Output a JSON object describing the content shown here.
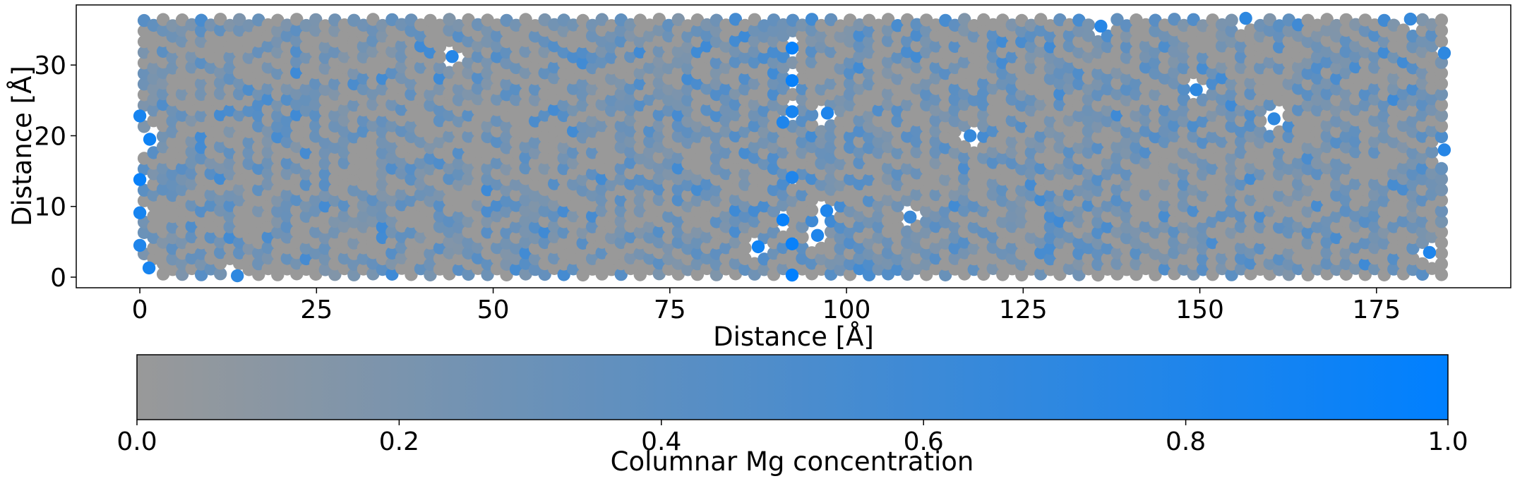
{
  "chart_data": {
    "type": "scatter",
    "title": "",
    "xlabel": "Distance [Å]",
    "ylabel": "Distance [Å]",
    "xlim": [
      -9,
      194
    ],
    "ylim": [
      -1.5,
      38.5
    ],
    "xticks": [
      0,
      25,
      50,
      75,
      100,
      125,
      150,
      175
    ],
    "yticks": [
      0,
      10,
      20,
      30
    ],
    "x_tick_labels": [
      "0",
      "25",
      "50",
      "75",
      "100",
      "125",
      "150",
      "175"
    ],
    "y_tick_labels": [
      "0",
      "10",
      "20",
      "30"
    ],
    "grid": false,
    "legend": "none",
    "lattice": {
      "x_start": 0.6,
      "x_end": 184.6,
      "y_start": 0.3,
      "y_end": 36.7,
      "column_spacing_x": 1.35,
      "row_spacing_y": 1.5,
      "row_shift_y": 0.75
    },
    "highlighted_columns": [
      {
        "x": 0.0,
        "y": 4.5,
        "c": 0.8
      },
      {
        "x": 0.0,
        "y": 9.1,
        "c": 0.85
      },
      {
        "x": 0.0,
        "y": 13.8,
        "c": 0.95
      },
      {
        "x": 0.0,
        "y": 22.8,
        "c": 0.85
      },
      {
        "x": 1.3,
        "y": 1.3,
        "c": 0.85
      },
      {
        "x": 1.4,
        "y": 19.5,
        "c": 0.9
      },
      {
        "x": 13.8,
        "y": 0.2,
        "c": 0.7
      },
      {
        "x": 44.2,
        "y": 31.2,
        "c": 0.75
      },
      {
        "x": 87.5,
        "y": 4.3,
        "c": 0.9
      },
      {
        "x": 91.0,
        "y": 8.1,
        "c": 0.95
      },
      {
        "x": 91.0,
        "y": 21.9,
        "c": 0.8
      },
      {
        "x": 92.3,
        "y": 0.3,
        "c": 1.0
      },
      {
        "x": 92.3,
        "y": 4.7,
        "c": 0.95
      },
      {
        "x": 92.3,
        "y": 14.1,
        "c": 0.8
      },
      {
        "x": 92.3,
        "y": 23.4,
        "c": 0.85
      },
      {
        "x": 92.3,
        "y": 27.8,
        "c": 0.95
      },
      {
        "x": 92.3,
        "y": 32.4,
        "c": 0.95
      },
      {
        "x": 95.9,
        "y": 5.9,
        "c": 0.8
      },
      {
        "x": 97.2,
        "y": 9.4,
        "c": 0.8
      },
      {
        "x": 97.3,
        "y": 23.2,
        "c": 0.8
      },
      {
        "x": 109.0,
        "y": 8.5,
        "c": 0.6
      },
      {
        "x": 117.5,
        "y": 20.0,
        "c": 0.65
      },
      {
        "x": 136.0,
        "y": 35.5,
        "c": 0.75
      },
      {
        "x": 149.5,
        "y": 26.5,
        "c": 0.7
      },
      {
        "x": 160.5,
        "y": 22.4,
        "c": 0.7
      },
      {
        "x": 182.5,
        "y": 3.5,
        "c": 0.8
      },
      {
        "x": 184.6,
        "y": 18.0,
        "c": 0.75
      },
      {
        "x": 184.6,
        "y": 31.7,
        "c": 0.7
      },
      {
        "x": 156.5,
        "y": 36.6,
        "c": 0.7
      },
      {
        "x": 179.8,
        "y": 36.5,
        "c": 0.65
      }
    ],
    "colorbar": {
      "label": "Columnar Mg concentration",
      "min": 0.0,
      "max": 1.0,
      "ticks": [
        0.0,
        0.2,
        0.4,
        0.6,
        0.8,
        1.0
      ],
      "tick_labels": [
        "0.0",
        "0.2",
        "0.4",
        "0.6",
        "0.8",
        "1.0"
      ],
      "color_low": "#999999",
      "color_high": "#0080ff"
    }
  }
}
